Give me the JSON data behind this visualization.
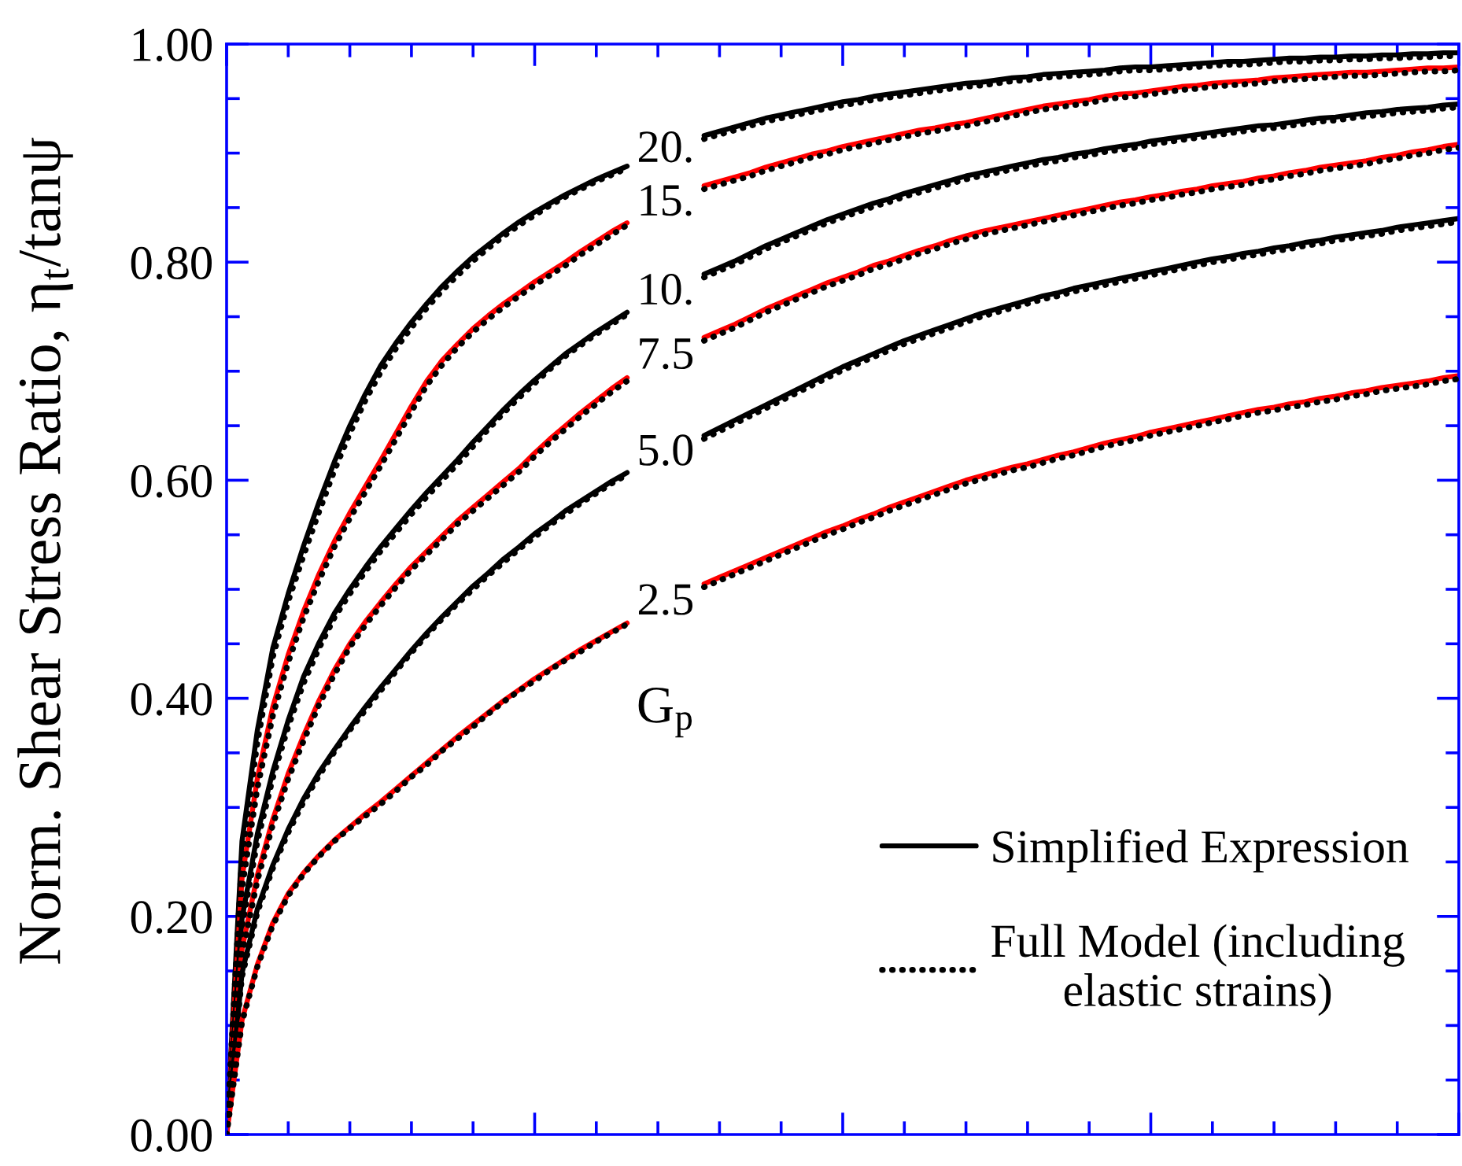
{
  "chart_data": {
    "type": "line",
    "ylabel": "Norm. Shear Stress Ratio, η$_{t}$/tanψ",
    "categories": [
      null,
      null,
      null,
      null,
      null,
      null,
      null,
      null,
      null,
      null,
      null,
      null,
      null,
      null,
      null,
      null,
      null,
      null,
      null,
      null,
      null,
      null,
      null,
      null,
      null,
      null,
      null,
      null,
      null,
      null,
      null,
      null,
      null,
      null,
      null,
      null,
      null,
      null,
      null,
      null,
      null,
      null,
      null,
      null,
      null,
      null,
      null,
      null,
      null,
      null,
      null,
      null,
      null,
      null,
      null,
      null,
      null,
      null,
      null,
      null,
      null,
      null,
      null,
      null,
      null,
      null,
      null,
      null,
      null,
      null,
      null,
      null,
      null,
      null,
      null,
      null,
      null,
      null,
      null,
      null,
      null
    ],
    "tick_labels": "y",
    "ylim": [
      0,
      1
    ],
    "yticks": [
      {
        "value": 0,
        "label": "0.00"
      },
      {
        "value": 0.05,
        "label": null
      },
      {
        "value": 0.1,
        "label": null
      },
      {
        "value": 0.15,
        "label": null
      },
      {
        "value": 0.2,
        "label": "0.20"
      },
      {
        "value": 0.25,
        "label": null
      },
      {
        "value": 0.3,
        "label": null
      },
      {
        "value": 0.35,
        "label": null
      },
      {
        "value": 0.4,
        "label": "0.40"
      },
      {
        "value": 0.45,
        "label": null
      },
      {
        "value": 0.5,
        "label": null
      },
      {
        "value": 0.55,
        "label": null
      },
      {
        "value": 0.6,
        "label": "0.60"
      },
      {
        "value": 0.65,
        "label": null
      },
      {
        "value": 0.7,
        "label": null
      },
      {
        "value": 0.75,
        "label": null
      },
      {
        "value": 0.8,
        "label": "0.80"
      },
      {
        "value": 0.85,
        "label": null
      },
      {
        "value": 0.9,
        "label": null
      },
      {
        "value": 0.95,
        "label": null
      },
      {
        "value": 1,
        "label": "1.00"
      }
    ],
    "legend": "bottom right",
    "series": [
      {
        "name": "Simplified Expression",
        "color": "#000000",
        "line_style": "solid",
        "values": [
          0,
          0.269,
          0.371,
          0.446,
          0.496,
          0.54,
          0.58,
          0.617,
          0.65,
          0.679,
          0.705,
          0.726,
          0.745,
          0.762,
          0.778,
          0.792,
          0.805,
          0.816,
          0.827,
          0.837,
          0.846,
          0.854,
          0.862,
          0.869,
          0.876,
          0.882,
          0.888,
          null,
          null,
          null,
          null,
          null,
          null,
          null,
          null,
          null,
          null,
          null,
          null,
          null,
          null,
          null,
          null,
          null,
          null,
          null,
          null,
          null,
          null,
          null,
          null,
          null,
          null,
          null,
          null,
          null,
          null,
          null,
          null,
          null,
          null,
          null,
          null,
          null,
          null,
          null,
          null,
          null,
          null,
          null,
          null,
          null,
          null,
          null,
          null,
          null,
          null,
          null,
          null,
          null,
          null
        ]
      },
      {
        "color": "#000000",
        "line_style": "solid",
        "values": [
          null,
          null,
          null,
          null,
          null,
          null,
          null,
          null,
          null,
          null,
          null,
          null,
          null,
          null,
          null,
          null,
          null,
          null,
          null,
          null,
          null,
          null,
          null,
          null,
          null,
          null,
          null,
          null,
          null,
          null,
          null,
          0.916,
          0.92,
          0.924,
          0.928,
          0.932,
          0.935,
          0.938,
          0.941,
          0.944,
          0.947,
          0.949,
          0.952,
          0.954,
          0.956,
          0.958,
          0.96,
          0.962,
          0.964,
          0.965,
          0.967,
          0.969,
          0.97,
          0.972,
          0.973,
          0.974,
          0.975,
          0.976,
          0.978,
          0.979,
          0.979,
          0.98,
          0.981,
          0.982,
          0.983,
          0.984,
          0.984,
          0.985,
          0.986,
          0.987,
          0.987,
          0.988,
          0.988,
          0.989,
          0.989,
          0.99,
          0.99,
          0.991,
          0.991,
          0.992,
          0.992
        ]
      },
      {
        "color": "#ff0000",
        "line_style": "solid",
        "values": [
          0,
          0.235,
          0.327,
          0.392,
          0.44,
          0.48,
          0.514,
          0.544,
          0.57,
          0.594,
          0.618,
          0.643,
          0.668,
          0.691,
          0.71,
          0.725,
          0.739,
          0.751,
          0.762,
          0.772,
          0.782,
          0.791,
          0.8,
          0.81,
          0.819,
          0.828,
          0.836,
          null,
          null,
          null,
          null,
          null,
          null,
          null,
          null,
          null,
          null,
          null,
          null,
          null,
          null,
          null,
          null,
          null,
          null,
          null,
          null,
          null,
          null,
          null,
          null,
          null,
          null,
          null,
          null,
          null,
          null,
          null,
          null,
          null,
          null,
          null,
          null,
          null,
          null,
          null,
          null,
          null,
          null,
          null,
          null,
          null,
          null,
          null,
          null,
          null,
          null,
          null,
          null,
          null,
          null
        ]
      },
      {
        "color": "#ff0000",
        "line_style": "solid",
        "values": [
          null,
          null,
          null,
          null,
          null,
          null,
          null,
          null,
          null,
          null,
          null,
          null,
          null,
          null,
          null,
          null,
          null,
          null,
          null,
          null,
          null,
          null,
          null,
          null,
          null,
          null,
          null,
          null,
          null,
          null,
          null,
          0.87,
          0.874,
          0.878,
          0.882,
          0.887,
          0.891,
          0.895,
          0.899,
          0.902,
          0.906,
          0.909,
          0.912,
          0.915,
          0.918,
          0.921,
          0.923,
          0.926,
          0.928,
          0.931,
          0.934,
          0.937,
          0.94,
          0.943,
          0.945,
          0.947,
          0.949,
          0.952,
          0.954,
          0.955,
          0.957,
          0.959,
          0.961,
          0.962,
          0.964,
          0.965,
          0.966,
          0.967,
          0.969,
          0.97,
          0.971,
          0.972,
          0.973,
          0.974,
          0.974,
          0.975,
          0.976,
          0.977,
          0.978,
          0.978,
          0.979
        ]
      },
      {
        "color": "#000000",
        "line_style": "solid",
        "values": [
          0,
          0.198,
          0.276,
          0.333,
          0.38,
          0.42,
          0.451,
          0.478,
          0.5,
          0.52,
          0.539,
          0.556,
          0.573,
          0.589,
          0.604,
          0.619,
          0.635,
          0.65,
          0.665,
          0.679,
          0.692,
          0.704,
          0.716,
          0.726,
          0.736,
          0.745,
          0.754,
          null,
          null,
          null,
          null,
          null,
          null,
          null,
          null,
          null,
          null,
          null,
          null,
          null,
          null,
          null,
          null,
          null,
          null,
          null,
          null,
          null,
          null,
          null,
          null,
          null,
          null,
          null,
          null,
          null,
          null,
          null,
          null,
          null,
          null,
          null,
          null,
          null,
          null,
          null,
          null,
          null,
          null,
          null,
          null,
          null,
          null,
          null,
          null,
          null,
          null,
          null,
          null,
          null,
          null
        ]
      },
      {
        "color": "#000000",
        "line_style": "solid",
        "values": [
          null,
          null,
          null,
          null,
          null,
          null,
          null,
          null,
          null,
          null,
          null,
          null,
          null,
          null,
          null,
          null,
          null,
          null,
          null,
          null,
          null,
          null,
          null,
          null,
          null,
          null,
          null,
          null,
          null,
          null,
          null,
          0.789,
          0.795,
          0.801,
          0.808,
          0.815,
          0.821,
          0.827,
          0.833,
          0.839,
          0.844,
          0.849,
          0.854,
          0.858,
          0.863,
          0.867,
          0.871,
          0.875,
          0.879,
          0.882,
          0.885,
          0.888,
          0.891,
          0.894,
          0.896,
          0.899,
          0.901,
          0.904,
          0.906,
          0.908,
          0.911,
          0.913,
          0.915,
          0.917,
          0.919,
          0.921,
          0.923,
          0.925,
          0.926,
          0.928,
          0.93,
          0.932,
          0.933,
          0.935,
          0.937,
          0.938,
          0.94,
          0.941,
          0.942,
          0.944,
          0.945
        ]
      },
      {
        "color": "#ff0000",
        "line_style": "solid",
        "values": [
          0,
          0.17,
          0.238,
          0.289,
          0.331,
          0.366,
          0.398,
          0.426,
          0.45,
          0.47,
          0.488,
          0.505,
          0.521,
          0.535,
          0.549,
          0.563,
          0.575,
          0.587,
          0.599,
          0.611,
          0.625,
          0.638,
          0.65,
          0.662,
          0.673,
          0.684,
          0.694,
          null,
          null,
          null,
          null,
          null,
          null,
          null,
          null,
          null,
          null,
          null,
          null,
          null,
          null,
          null,
          null,
          null,
          null,
          null,
          null,
          null,
          null,
          null,
          null,
          null,
          null,
          null,
          null,
          null,
          null,
          null,
          null,
          null,
          null,
          null,
          null,
          null,
          null,
          null,
          null,
          null,
          null,
          null,
          null,
          null,
          null,
          null,
          null,
          null,
          null,
          null,
          null,
          null,
          null
        ]
      },
      {
        "color": "#ff0000",
        "line_style": "solid",
        "values": [
          null,
          null,
          null,
          null,
          null,
          null,
          null,
          null,
          null,
          null,
          null,
          null,
          null,
          null,
          null,
          null,
          null,
          null,
          null,
          null,
          null,
          null,
          null,
          null,
          null,
          null,
          null,
          null,
          null,
          null,
          null,
          0.731,
          0.737,
          0.743,
          0.75,
          0.757,
          0.763,
          0.769,
          0.775,
          0.781,
          0.786,
          0.791,
          0.797,
          0.801,
          0.806,
          0.811,
          0.815,
          0.82,
          0.824,
          0.828,
          0.831,
          0.834,
          0.837,
          0.84,
          0.843,
          0.846,
          0.849,
          0.852,
          0.855,
          0.857,
          0.86,
          0.862,
          0.865,
          0.867,
          0.87,
          0.872,
          0.874,
          0.877,
          0.879,
          0.882,
          0.884,
          0.887,
          0.889,
          0.891,
          0.893,
          0.896,
          0.898,
          0.901,
          0.903,
          0.906,
          0.908
        ]
      },
      {
        "color": "#000000",
        "line_style": "solid",
        "values": [
          0,
          0.148,
          0.207,
          0.247,
          0.28,
          0.308,
          0.332,
          0.353,
          0.373,
          0.392,
          0.41,
          0.427,
          0.444,
          0.46,
          0.475,
          0.489,
          0.503,
          0.515,
          0.528,
          0.539,
          0.551,
          0.561,
          0.572,
          0.581,
          0.59,
          0.599,
          0.607,
          null,
          null,
          null,
          null,
          null,
          null,
          null,
          null,
          null,
          null,
          null,
          null,
          null,
          null,
          null,
          null,
          null,
          null,
          null,
          null,
          null,
          null,
          null,
          null,
          null,
          null,
          null,
          null,
          null,
          null,
          null,
          null,
          null,
          null,
          null,
          null,
          null,
          null,
          null,
          null,
          null,
          null,
          null,
          null,
          null,
          null,
          null,
          null,
          null,
          null,
          null,
          null,
          null,
          null
        ]
      },
      {
        "color": "#000000",
        "line_style": "solid",
        "values": [
          null,
          null,
          null,
          null,
          null,
          null,
          null,
          null,
          null,
          null,
          null,
          null,
          null,
          null,
          null,
          null,
          null,
          null,
          null,
          null,
          null,
          null,
          null,
          null,
          null,
          null,
          null,
          null,
          null,
          null,
          null,
          0.641,
          0.648,
          0.655,
          0.662,
          0.669,
          0.676,
          0.683,
          0.69,
          0.697,
          0.704,
          0.71,
          0.716,
          0.722,
          0.728,
          0.733,
          0.738,
          0.743,
          0.748,
          0.753,
          0.757,
          0.761,
          0.765,
          0.769,
          0.772,
          0.776,
          0.779,
          0.782,
          0.785,
          0.788,
          0.791,
          0.794,
          0.797,
          0.8,
          0.803,
          0.805,
          0.808,
          0.81,
          0.813,
          0.815,
          0.818,
          0.82,
          0.823,
          0.825,
          0.827,
          0.829,
          0.832,
          0.834,
          0.836,
          0.838,
          0.84
        ]
      },
      {
        "color": "#ff0000",
        "line_style": "solid",
        "values": [
          0,
          0.105,
          0.156,
          0.194,
          0.221,
          0.24,
          0.256,
          0.27,
          0.282,
          0.294,
          0.305,
          0.317,
          0.329,
          0.341,
          0.353,
          0.365,
          0.376,
          0.387,
          0.398,
          0.408,
          0.418,
          0.427,
          0.436,
          0.445,
          0.453,
          0.461,
          0.469,
          null,
          null,
          null,
          null,
          null,
          null,
          null,
          null,
          null,
          null,
          null,
          null,
          null,
          null,
          null,
          null,
          null,
          null,
          null,
          null,
          null,
          null,
          null,
          null,
          null,
          null,
          null,
          null,
          null,
          null,
          null,
          null,
          null,
          null,
          null,
          null,
          null,
          null,
          null,
          null,
          null,
          null,
          null,
          null,
          null,
          null,
          null,
          null,
          null,
          null,
          null,
          null,
          null,
          null
        ]
      },
      {
        "color": "#ff0000",
        "line_style": "solid",
        "values": [
          null,
          null,
          null,
          null,
          null,
          null,
          null,
          null,
          null,
          null,
          null,
          null,
          null,
          null,
          null,
          null,
          null,
          null,
          null,
          null,
          null,
          null,
          null,
          null,
          null,
          null,
          null,
          null,
          null,
          null,
          null,
          0.505,
          0.511,
          0.517,
          0.523,
          0.529,
          0.535,
          0.541,
          0.547,
          0.553,
          0.558,
          0.564,
          0.569,
          0.575,
          0.58,
          0.585,
          0.59,
          0.595,
          0.6,
          0.604,
          0.608,
          0.612,
          0.615,
          0.619,
          0.623,
          0.626,
          0.63,
          0.634,
          0.637,
          0.64,
          0.644,
          0.647,
          0.65,
          0.653,
          0.656,
          0.659,
          0.662,
          0.665,
          0.667,
          0.67,
          0.672,
          0.675,
          0.677,
          0.68,
          0.682,
          0.685,
          0.687,
          0.689,
          0.691,
          0.694,
          0.696
        ]
      },
      {
        "name": "Full Model (including\nelastic strains)",
        "color": "#000000",
        "line_style": "dotted",
        "values": [
          0,
          0.256,
          0.36,
          0.438,
          0.489,
          0.531,
          0.571,
          0.609,
          0.643,
          0.673,
          0.699,
          0.721,
          0.74,
          0.758,
          0.774,
          0.788,
          0.801,
          0.813,
          0.824,
          0.834,
          0.843,
          0.852,
          0.86,
          0.867,
          0.874,
          0.88,
          0.886,
          null,
          null,
          null,
          null,
          null,
          null,
          null,
          null,
          null,
          null,
          null,
          null,
          null,
          null,
          null,
          null,
          null,
          null,
          null,
          null,
          null,
          null,
          null,
          null,
          null,
          null,
          null,
          null,
          null,
          null,
          null,
          null,
          null,
          null,
          null,
          null,
          null,
          null,
          null,
          null,
          null,
          null,
          null,
          null,
          null,
          null,
          null,
          null,
          null,
          null,
          null,
          null,
          null,
          null
        ]
      },
      {
        "color": "#000000",
        "line_style": "dotted",
        "values": [
          null,
          null,
          null,
          null,
          null,
          null,
          null,
          null,
          null,
          null,
          null,
          null,
          null,
          null,
          null,
          null,
          null,
          null,
          null,
          null,
          null,
          null,
          null,
          null,
          null,
          null,
          null,
          null,
          null,
          null,
          null,
          0.913,
          0.917,
          0.921,
          0.925,
          0.929,
          0.932,
          0.935,
          0.938,
          0.941,
          0.944,
          0.946,
          0.949,
          0.951,
          0.953,
          0.955,
          0.957,
          0.959,
          0.961,
          0.962,
          0.964,
          0.966,
          0.967,
          0.969,
          0.97,
          0.971,
          0.972,
          0.973,
          0.975,
          0.976,
          0.976,
          0.977,
          0.978,
          0.979,
          0.98,
          0.981,
          0.981,
          0.982,
          0.983,
          0.984,
          0.984,
          0.985,
          0.985,
          0.986,
          0.986,
          0.987,
          0.987,
          0.988,
          0.988,
          0.989,
          0.989
        ]
      },
      {
        "color": "#000000",
        "line_style": "dotted",
        "values": [
          0,
          0.226,
          0.318,
          0.384,
          0.433,
          0.474,
          0.508,
          0.539,
          0.565,
          0.589,
          0.613,
          0.638,
          0.663,
          0.687,
          0.706,
          0.722,
          0.736,
          0.748,
          0.759,
          0.769,
          0.779,
          0.788,
          0.797,
          0.807,
          0.816,
          0.825,
          0.834,
          null,
          null,
          null,
          null,
          null,
          null,
          null,
          null,
          null,
          null,
          null,
          null,
          null,
          null,
          null,
          null,
          null,
          null,
          null,
          null,
          null,
          null,
          null,
          null,
          null,
          null,
          null,
          null,
          null,
          null,
          null,
          null,
          null,
          null,
          null,
          null,
          null,
          null,
          null,
          null,
          null,
          null,
          null,
          null,
          null,
          null,
          null,
          null,
          null,
          null,
          null,
          null,
          null,
          null
        ]
      },
      {
        "color": "#000000",
        "line_style": "dotted",
        "values": [
          null,
          null,
          null,
          null,
          null,
          null,
          null,
          null,
          null,
          null,
          null,
          null,
          null,
          null,
          null,
          null,
          null,
          null,
          null,
          null,
          null,
          null,
          null,
          null,
          null,
          null,
          null,
          null,
          null,
          null,
          null,
          0.867,
          0.871,
          0.875,
          0.879,
          0.884,
          0.888,
          0.892,
          0.896,
          0.899,
          0.903,
          0.906,
          0.909,
          0.912,
          0.915,
          0.918,
          0.92,
          0.923,
          0.925,
          0.928,
          0.931,
          0.934,
          0.937,
          0.94,
          0.942,
          0.944,
          0.946,
          0.949,
          0.951,
          0.952,
          0.954,
          0.956,
          0.958,
          0.959,
          0.961,
          0.962,
          0.963,
          0.964,
          0.966,
          0.967,
          0.968,
          0.969,
          0.97,
          0.971,
          0.971,
          0.972,
          0.973,
          0.974,
          0.975,
          0.975,
          0.976
        ]
      },
      {
        "color": "#000000",
        "line_style": "dotted",
        "values": [
          0,
          0.191,
          0.269,
          0.327,
          0.374,
          0.414,
          0.446,
          0.474,
          0.496,
          0.516,
          0.535,
          0.552,
          0.569,
          0.585,
          0.6,
          0.615,
          0.631,
          0.647,
          0.662,
          0.676,
          0.689,
          0.702,
          0.714,
          0.724,
          0.734,
          0.743,
          0.752,
          null,
          null,
          null,
          null,
          null,
          null,
          null,
          null,
          null,
          null,
          null,
          null,
          null,
          null,
          null,
          null,
          null,
          null,
          null,
          null,
          null,
          null,
          null,
          null,
          null,
          null,
          null,
          null,
          null,
          null,
          null,
          null,
          null,
          null,
          null,
          null,
          null,
          null,
          null,
          null,
          null,
          null,
          null,
          null,
          null,
          null,
          null,
          null,
          null,
          null,
          null,
          null,
          null,
          null
        ]
      },
      {
        "color": "#000000",
        "line_style": "dotted",
        "values": [
          null,
          null,
          null,
          null,
          null,
          null,
          null,
          null,
          null,
          null,
          null,
          null,
          null,
          null,
          null,
          null,
          null,
          null,
          null,
          null,
          null,
          null,
          null,
          null,
          null,
          null,
          null,
          null,
          null,
          null,
          null,
          0.786,
          0.792,
          0.798,
          0.805,
          0.812,
          0.818,
          0.824,
          0.83,
          0.836,
          0.841,
          0.846,
          0.851,
          0.855,
          0.86,
          0.864,
          0.868,
          0.872,
          0.876,
          0.879,
          0.882,
          0.885,
          0.888,
          0.891,
          0.893,
          0.896,
          0.898,
          0.901,
          0.903,
          0.905,
          0.908,
          0.91,
          0.912,
          0.914,
          0.916,
          0.918,
          0.92,
          0.922,
          0.923,
          0.925,
          0.927,
          0.929,
          0.93,
          0.932,
          0.934,
          0.935,
          0.937,
          0.938,
          0.939,
          0.941,
          0.942
        ]
      },
      {
        "color": "#000000",
        "line_style": "dotted",
        "values": [
          0,
          0.165,
          0.233,
          0.284,
          0.326,
          0.361,
          0.394,
          0.422,
          0.447,
          0.467,
          0.485,
          0.502,
          0.518,
          0.532,
          0.546,
          0.56,
          0.572,
          0.584,
          0.596,
          0.608,
          0.622,
          0.635,
          0.647,
          0.659,
          0.67,
          0.681,
          0.691,
          null,
          null,
          null,
          null,
          null,
          null,
          null,
          null,
          null,
          null,
          null,
          null,
          null,
          null,
          null,
          null,
          null,
          null,
          null,
          null,
          null,
          null,
          null,
          null,
          null,
          null,
          null,
          null,
          null,
          null,
          null,
          null,
          null,
          null,
          null,
          null,
          null,
          null,
          null,
          null,
          null,
          null,
          null,
          null,
          null,
          null,
          null,
          null,
          null,
          null,
          null,
          null,
          null,
          null
        ]
      },
      {
        "color": "#000000",
        "line_style": "dotted",
        "values": [
          null,
          null,
          null,
          null,
          null,
          null,
          null,
          null,
          null,
          null,
          null,
          null,
          null,
          null,
          null,
          null,
          null,
          null,
          null,
          null,
          null,
          null,
          null,
          null,
          null,
          null,
          null,
          null,
          null,
          null,
          null,
          0.728,
          0.734,
          0.74,
          0.747,
          0.754,
          0.76,
          0.766,
          0.772,
          0.778,
          0.783,
          0.788,
          0.794,
          0.798,
          0.803,
          0.808,
          0.812,
          0.817,
          0.821,
          0.825,
          0.828,
          0.831,
          0.834,
          0.837,
          0.84,
          0.843,
          0.846,
          0.849,
          0.852,
          0.854,
          0.857,
          0.859,
          0.862,
          0.864,
          0.867,
          0.869,
          0.871,
          0.874,
          0.876,
          0.879,
          0.881,
          0.884,
          0.886,
          0.888,
          0.89,
          0.893,
          0.895,
          0.898,
          0.9,
          0.903,
          0.905
        ]
      },
      {
        "color": "#000000",
        "line_style": "dotted",
        "values": [
          0,
          0.145,
          0.204,
          0.244,
          0.277,
          0.305,
          0.329,
          0.351,
          0.371,
          0.389,
          0.407,
          0.425,
          0.442,
          0.458,
          0.473,
          0.487,
          0.5,
          0.513,
          0.525,
          0.537,
          0.548,
          0.559,
          0.569,
          0.579,
          0.588,
          0.597,
          0.605,
          null,
          null,
          null,
          null,
          null,
          null,
          null,
          null,
          null,
          null,
          null,
          null,
          null,
          null,
          null,
          null,
          null,
          null,
          null,
          null,
          null,
          null,
          null,
          null,
          null,
          null,
          null,
          null,
          null,
          null,
          null,
          null,
          null,
          null,
          null,
          null,
          null,
          null,
          null,
          null,
          null,
          null,
          null,
          null,
          null,
          null,
          null,
          null,
          null,
          null,
          null,
          null,
          null,
          null
        ]
      },
      {
        "color": "#000000",
        "line_style": "dotted",
        "values": [
          null,
          null,
          null,
          null,
          null,
          null,
          null,
          null,
          null,
          null,
          null,
          null,
          null,
          null,
          null,
          null,
          null,
          null,
          null,
          null,
          null,
          null,
          null,
          null,
          null,
          null,
          null,
          null,
          null,
          null,
          null,
          0.638,
          0.645,
          0.652,
          0.659,
          0.666,
          0.673,
          0.68,
          0.687,
          0.694,
          0.701,
          0.707,
          0.713,
          0.719,
          0.725,
          0.73,
          0.735,
          0.74,
          0.745,
          0.75,
          0.754,
          0.758,
          0.762,
          0.766,
          0.769,
          0.773,
          0.776,
          0.779,
          0.782,
          0.785,
          0.788,
          0.791,
          0.794,
          0.797,
          0.8,
          0.802,
          0.805,
          0.807,
          0.81,
          0.812,
          0.815,
          0.817,
          0.82,
          0.822,
          0.824,
          0.826,
          0.829,
          0.831,
          0.833,
          0.835,
          0.837
        ]
      },
      {
        "color": "#000000",
        "line_style": "dotted",
        "values": [
          0,
          0.103,
          0.154,
          0.192,
          0.219,
          0.239,
          0.255,
          0.269,
          0.281,
          0.292,
          0.303,
          0.315,
          0.328,
          0.339,
          0.352,
          0.363,
          0.374,
          0.386,
          0.397,
          0.407,
          0.416,
          0.426,
          0.435,
          0.443,
          0.452,
          0.46,
          0.468,
          null,
          null,
          null,
          null,
          null,
          null,
          null,
          null,
          null,
          null,
          null,
          null,
          null,
          null,
          null,
          null,
          null,
          null,
          null,
          null,
          null,
          null,
          null,
          null,
          null,
          null,
          null,
          null,
          null,
          null,
          null,
          null,
          null,
          null,
          null,
          null,
          null,
          null,
          null,
          null,
          null,
          null,
          null,
          null,
          null,
          null,
          null,
          null,
          null,
          null,
          null,
          null,
          null,
          null
        ]
      },
      {
        "color": "#000000",
        "line_style": "dotted",
        "values": [
          null,
          null,
          null,
          null,
          null,
          null,
          null,
          null,
          null,
          null,
          null,
          null,
          null,
          null,
          null,
          null,
          null,
          null,
          null,
          null,
          null,
          null,
          null,
          null,
          null,
          null,
          null,
          null,
          null,
          null,
          null,
          0.502,
          0.508,
          0.514,
          0.52,
          0.526,
          0.532,
          0.538,
          0.544,
          0.55,
          0.555,
          0.561,
          0.566,
          0.572,
          0.577,
          0.582,
          0.587,
          0.592,
          0.597,
          0.601,
          0.605,
          0.609,
          0.612,
          0.616,
          0.62,
          0.623,
          0.627,
          0.631,
          0.634,
          0.637,
          0.641,
          0.644,
          0.647,
          0.65,
          0.653,
          0.656,
          0.659,
          0.662,
          0.664,
          0.667,
          0.669,
          0.672,
          0.674,
          0.677,
          0.679,
          0.682,
          0.684,
          0.686,
          0.688,
          0.691,
          0.693
        ]
      }
    ],
    "annotations": [
      "20.",
      "15.",
      "10.",
      "7.5",
      "5.0",
      "2.5",
      "G$_{p}$"
    ]
  }
}
